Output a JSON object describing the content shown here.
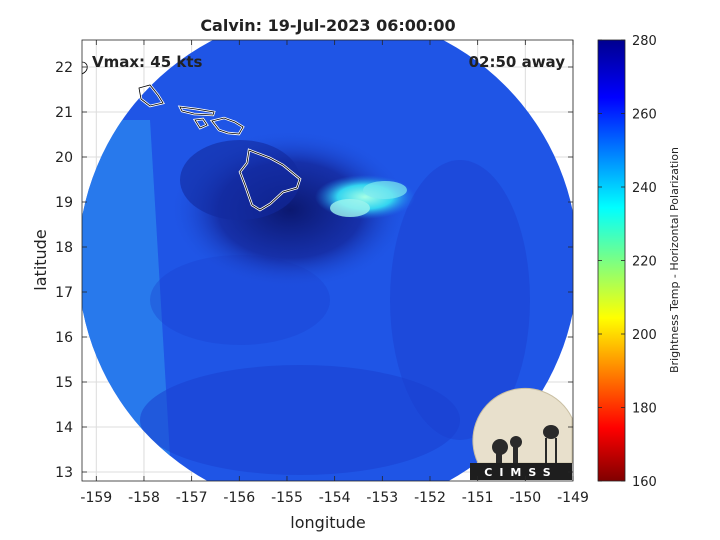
{
  "title": "Calvin: 19-Jul-2023 06:00:00",
  "annotations": {
    "vmax": "Vmax: 45 kts",
    "time_away": "02:50 away"
  },
  "logo_text": "CIMSS",
  "colors": {
    "scan_background": "#1f55e6",
    "eye_core": "#0f1e7a",
    "coastline": "#ffffff"
  },
  "chart_data": {
    "type": "heatmap",
    "title": "Calvin: 19-Jul-2023 06:00:00",
    "xlabel": "longitude",
    "ylabel": "latitude",
    "xlim": [
      -159.3,
      -149
    ],
    "ylim": [
      12.8,
      22.6
    ],
    "x_ticks": [
      -159,
      -158,
      -157,
      -156,
      -155,
      -154,
      -153,
      -152,
      -151,
      -150,
      -149
    ],
    "y_ticks": [
      13,
      14,
      15,
      16,
      17,
      18,
      19,
      20,
      21,
      22
    ],
    "grid": true,
    "colorbar": {
      "label": "Brightness Temp - Horizontal Polarization",
      "min": 160,
      "max": 280,
      "ticks": [
        160,
        180,
        200,
        220,
        240,
        260,
        280
      ]
    }
  }
}
